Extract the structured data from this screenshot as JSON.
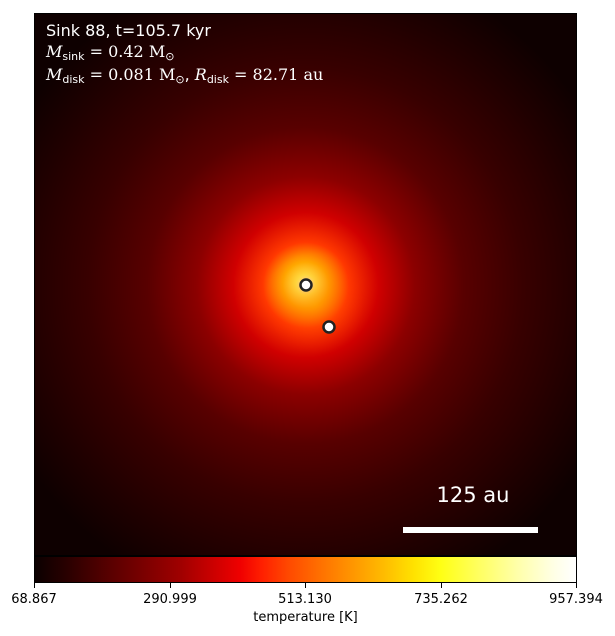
{
  "annotation": {
    "line1": "Sink 88, t=105.7 kyr",
    "m_sink_symbol": "M",
    "m_sink_sub": "sink",
    "m_sink_value": " = 0.42 M",
    "m_sink_unit_sub": "⊙",
    "m_disk_symbol": "M",
    "m_disk_sub": "disk",
    "m_disk_value": " = 0.081 M",
    "m_disk_unit_sub": "⊙",
    "separator": ", ",
    "r_disk_symbol": "R",
    "r_disk_sub": "disk",
    "r_disk_value": " = 82.71 au"
  },
  "scale_bar": {
    "label": "125 au"
  },
  "colorbar": {
    "title": "temperature [K]",
    "ticks": [
      "68.867",
      "290.999",
      "513.130",
      "735.262",
      "957.394"
    ],
    "colormap": "hot"
  },
  "sinks": [
    {
      "name": "sink-primary",
      "fill": "#ffffff",
      "edge": "#222222"
    },
    {
      "name": "sink-secondary",
      "fill": "#ffffff",
      "edge": "#222222"
    }
  ]
}
